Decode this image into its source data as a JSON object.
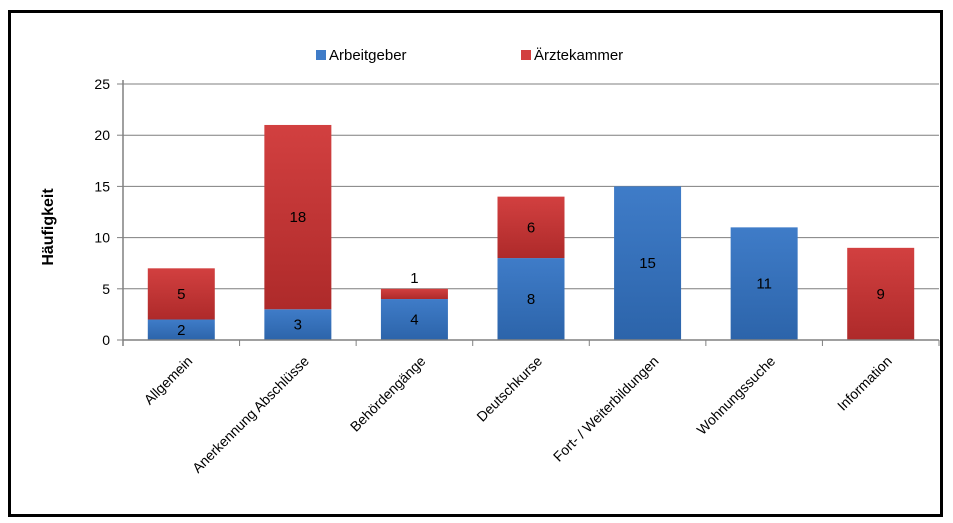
{
  "colors": {
    "arbeitgeber": "#3F7CC8",
    "arbeitgeber_dark": "#2C64AA",
    "aerztekammer": "#D24040",
    "aerztekammer_dark": "#AE2A2A",
    "grid": "#7F7F7F",
    "axis": "#808080"
  },
  "chart_data": {
    "type": "bar",
    "stacked": true,
    "title": "",
    "xlabel": "",
    "ylabel": "Häufigkeit",
    "ylim": [
      0,
      25
    ],
    "yticks": [
      "0",
      "5",
      "10",
      "15",
      "20",
      "25"
    ],
    "grid": true,
    "legend_position": "top",
    "categories": [
      "Allgemein",
      "Anerkennung Abschlüsse",
      "Behördengänge",
      "Deutschkurse",
      "Fort- / Weiterbildungen",
      "Wohnungssuche",
      "Information"
    ],
    "series": [
      {
        "name": "Arbeitgeber",
        "color": "#3F7CC8",
        "values": [
          2,
          3,
          4,
          8,
          15,
          11,
          0
        ],
        "labels": [
          "2",
          "3",
          "4",
          "8",
          "15",
          "11",
          ""
        ]
      },
      {
        "name": "Ärztekammer",
        "color": "#D24040",
        "values": [
          5,
          18,
          1,
          6,
          0,
          0,
          9
        ],
        "labels": [
          "5",
          "18",
          "1",
          "6",
          "",
          "",
          "9"
        ]
      }
    ]
  }
}
